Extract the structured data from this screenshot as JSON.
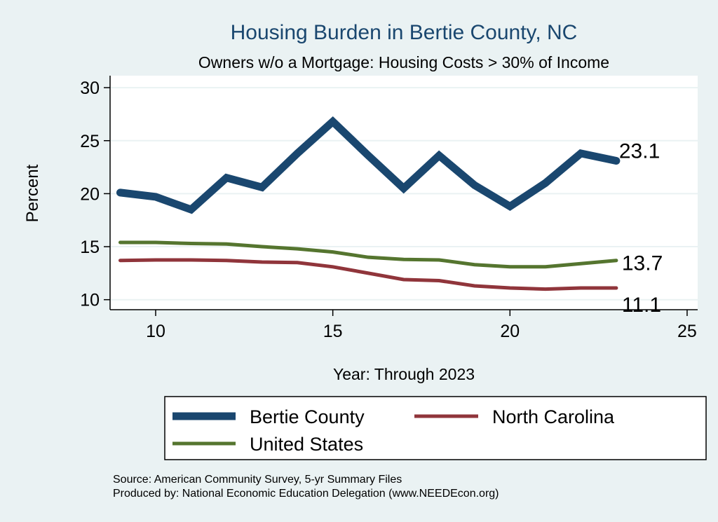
{
  "chart_data": {
    "type": "line",
    "title": "Housing Burden in Bertie County, NC",
    "subtitle": "Owners w/o a Mortgage: Housing Costs > 30% of Income",
    "xlabel": "Year: Through 2023",
    "ylabel": "Percent",
    "xlim": [
      8.7,
      25.3
    ],
    "ylim": [
      9.2,
      31
    ],
    "xticks": [
      10,
      15,
      20,
      25
    ],
    "yticks": [
      10,
      15,
      20,
      25,
      30
    ],
    "grid": true,
    "legend_position": "bottom",
    "x": [
      9,
      10,
      11,
      12,
      13,
      14,
      15,
      16,
      17,
      18,
      19,
      20,
      21,
      22,
      23
    ],
    "series": [
      {
        "name": "Bertie County",
        "color": "#1a476f",
        "values": [
          20.1,
          19.7,
          18.5,
          21.5,
          20.6,
          23.8,
          26.8,
          23.6,
          20.5,
          23.6,
          20.8,
          18.8,
          21.0,
          23.8,
          23.1
        ],
        "end_label": "23.1"
      },
      {
        "name": "North Carolina",
        "color": "#90353b",
        "values": [
          13.7,
          13.75,
          13.75,
          13.7,
          13.55,
          13.5,
          13.1,
          12.5,
          11.9,
          11.8,
          11.3,
          11.1,
          11.0,
          11.1,
          11.1
        ],
        "end_label": "11.1"
      },
      {
        "name": "United States",
        "color": "#55752f",
        "values": [
          15.4,
          15.4,
          15.3,
          15.25,
          15.0,
          14.8,
          14.5,
          14.0,
          13.8,
          13.75,
          13.3,
          13.1,
          13.1,
          13.4,
          13.7
        ],
        "end_label": "13.7"
      }
    ]
  },
  "notes": {
    "source": "Source: American Community Survey, 5-yr Summary Files",
    "produced": "Produced by: National Economic Education Delegation (www.NEEDEcon.org)"
  }
}
